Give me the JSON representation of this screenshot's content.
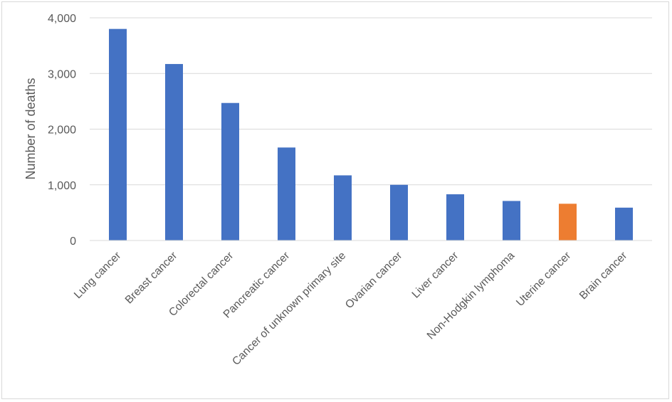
{
  "chart_data": {
    "type": "bar",
    "title": "",
    "xlabel": "",
    "ylabel": "Number of deaths",
    "ylim": [
      0,
      4000
    ],
    "yticks": [
      {
        "value": 0,
        "label": "0"
      },
      {
        "value": 1000,
        "label": "1,000"
      },
      {
        "value": 2000,
        "label": "2,000"
      },
      {
        "value": 3000,
        "label": "3,000"
      },
      {
        "value": 4000,
        "label": "4,000"
      }
    ],
    "grid": true,
    "legend": "none",
    "colors": {
      "default": "#4472c4",
      "highlight": "#ed7d31"
    },
    "categories": [
      "Lung cancer",
      "Breast cancer",
      "Colorectal cancer",
      "Pancreatic cancer",
      "Cancer of unknown primary site",
      "Ovarian cancer",
      "Liver cancer",
      "Non-Hodgkin lymphoma",
      "Uterine cancer",
      "Brain cancer"
    ],
    "values": [
      3800,
      3170,
      2470,
      1670,
      1170,
      1000,
      830,
      710,
      660,
      590
    ],
    "highlighted_category": "Uterine cancer"
  }
}
